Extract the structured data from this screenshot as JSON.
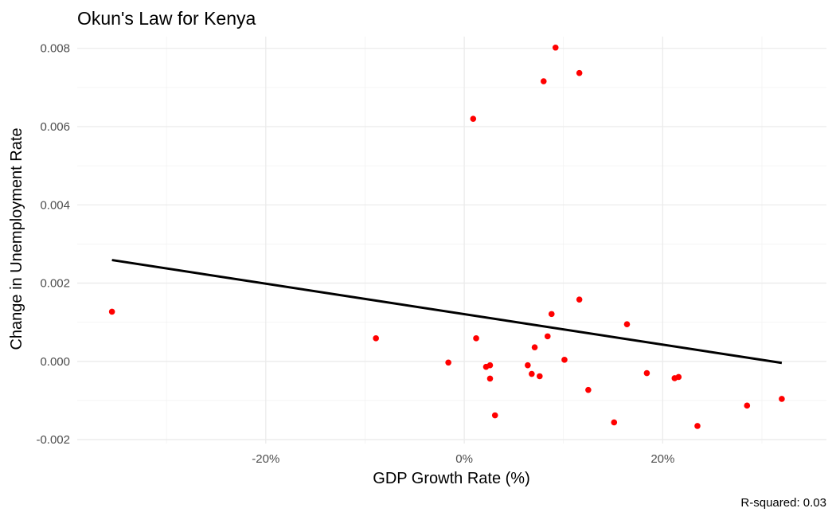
{
  "chart_data": {
    "type": "scatter",
    "title": "Okun's Law for Kenya",
    "xlabel": "GDP Growth Rate (%)",
    "ylabel": "Change in Unemployment Rate",
    "caption": "R-squared: 0.03",
    "xlim": [
      -0.39,
      0.365
    ],
    "ylim": [
      -0.0021,
      0.0083
    ],
    "x_ticks": [
      -0.2,
      0.0,
      0.2
    ],
    "x_tick_labels": [
      "-20%",
      "0%",
      "20%"
    ],
    "y_ticks": [
      -0.002,
      0.0,
      0.002,
      0.004,
      0.006,
      0.008
    ],
    "y_tick_labels": [
      "-0.002",
      "0.000",
      "0.002",
      "0.004",
      "0.006",
      "0.008"
    ],
    "grid": true,
    "point_color": "#ff0000",
    "line_color": "#000000",
    "points": [
      {
        "x": -0.355,
        "y": 0.00127
      },
      {
        "x": -0.089,
        "y": 0.00059
      },
      {
        "x": -0.016,
        "y": -3e-05
      },
      {
        "x": 0.009,
        "y": 0.0062
      },
      {
        "x": 0.012,
        "y": 0.00059
      },
      {
        "x": 0.022,
        "y": -0.00014
      },
      {
        "x": 0.026,
        "y": -0.0001
      },
      {
        "x": 0.026,
        "y": -0.00044
      },
      {
        "x": 0.031,
        "y": -0.00138
      },
      {
        "x": 0.064,
        "y": -0.0001
      },
      {
        "x": 0.068,
        "y": -0.00032
      },
      {
        "x": 0.071,
        "y": 0.00036
      },
      {
        "x": 0.076,
        "y": -0.00038
      },
      {
        "x": 0.08,
        "y": 0.00716
      },
      {
        "x": 0.084,
        "y": 0.00064
      },
      {
        "x": 0.088,
        "y": 0.00121
      },
      {
        "x": 0.092,
        "y": 0.00802
      },
      {
        "x": 0.101,
        "y": 4e-05
      },
      {
        "x": 0.116,
        "y": 0.00737
      },
      {
        "x": 0.116,
        "y": 0.00158
      },
      {
        "x": 0.125,
        "y": -0.00073
      },
      {
        "x": 0.151,
        "y": -0.00156
      },
      {
        "x": 0.164,
        "y": 0.00095
      },
      {
        "x": 0.184,
        "y": -0.0003
      },
      {
        "x": 0.212,
        "y": -0.00043
      },
      {
        "x": 0.216,
        "y": -0.0004
      },
      {
        "x": 0.235,
        "y": -0.00165
      },
      {
        "x": 0.285,
        "y": -0.00113
      },
      {
        "x": 0.32,
        "y": -0.00096
      }
    ],
    "fit_line": {
      "x": [
        -0.355,
        0.32
      ],
      "y": [
        0.00259,
        -4e-05
      ]
    }
  }
}
